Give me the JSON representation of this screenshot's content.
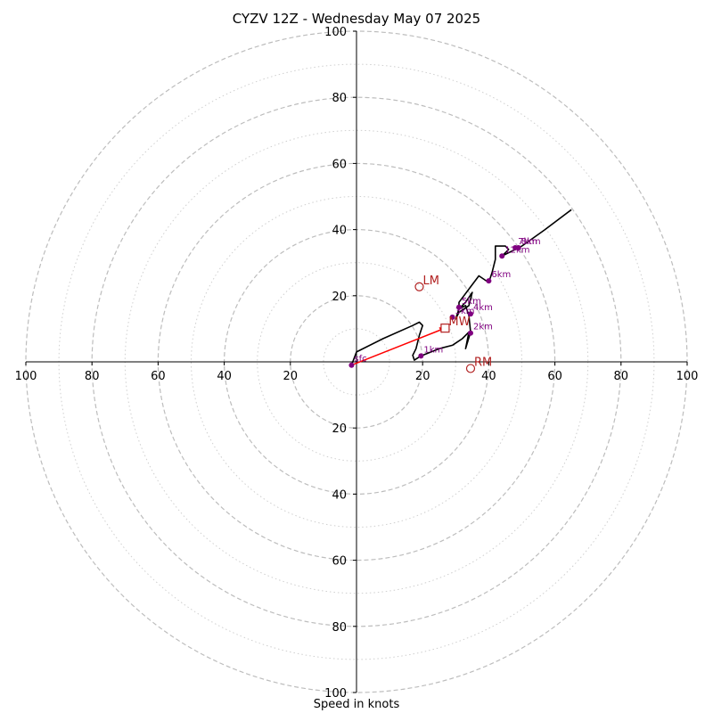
{
  "chart_data": {
    "type": "hodograph",
    "title": "CYZV 12Z - Wednesday May 07 2025",
    "xlabel": "Speed in knots",
    "ylabel": "",
    "range": [
      -100,
      100
    ],
    "ring_ticks": [
      20,
      40,
      60,
      80,
      100
    ],
    "minor_rings": [
      10,
      30,
      50,
      70,
      90
    ],
    "x_tick_labels": [
      "100",
      "80",
      "60",
      "40",
      "20",
      "20",
      "40",
      "60",
      "80",
      "100"
    ],
    "y_tick_labels": [
      "100",
      "80",
      "60",
      "40",
      "20",
      "20",
      "40",
      "60",
      "80",
      "100"
    ],
    "grid": true,
    "colors": {
      "trace": "#000000",
      "height_points": "#800080",
      "motion_markers": "#b22222",
      "arrow": "#ff0000",
      "ring": "#bdbdbd"
    },
    "trace": [
      [
        -1.5,
        -1
      ],
      [
        0,
        3
      ],
      [
        8,
        7
      ],
      [
        17,
        11
      ],
      [
        19,
        12
      ],
      [
        20,
        11
      ],
      [
        19,
        8
      ],
      [
        18,
        4
      ],
      [
        17,
        2
      ],
      [
        17.5,
        0.5
      ],
      [
        19,
        1.5
      ],
      [
        20,
        2
      ],
      [
        25,
        4
      ],
      [
        29,
        5
      ],
      [
        32,
        7
      ],
      [
        34,
        9
      ],
      [
        33,
        4
      ],
      [
        34.5,
        9
      ],
      [
        34,
        14
      ],
      [
        33,
        17
      ],
      [
        31,
        16
      ],
      [
        33,
        18
      ],
      [
        35,
        21
      ],
      [
        34,
        17
      ],
      [
        31,
        15
      ],
      [
        30,
        13
      ],
      [
        31,
        16
      ],
      [
        31,
        18
      ],
      [
        34,
        22
      ],
      [
        37,
        26
      ],
      [
        40,
        24
      ],
      [
        41,
        27
      ],
      [
        42,
        31
      ],
      [
        42,
        35
      ],
      [
        45,
        35
      ],
      [
        46,
        34
      ],
      [
        44,
        32
      ],
      [
        48,
        34
      ],
      [
        50,
        35
      ],
      [
        57,
        40
      ],
      [
        65,
        46
      ]
    ],
    "height_points": [
      {
        "label": "sfc",
        "u": -1.5,
        "v": -1
      },
      {
        "label": "1km",
        "u": 19.5,
        "v": 1.8
      },
      {
        "label": "2km",
        "u": 34.5,
        "v": 8.7
      },
      {
        "label": "3km",
        "u": 29,
        "v": 13.5
      },
      {
        "label": "4km",
        "u": 34.5,
        "v": 14.5
      },
      {
        "label": "5km",
        "u": 31,
        "v": 16.5
      },
      {
        "label": "6km",
        "u": 40,
        "v": 24.5
      },
      {
        "label": "7km",
        "u": 48,
        "v": 34.5
      },
      {
        "label": "8km",
        "u": 49,
        "v": 34.5
      },
      {
        "label": "12km",
        "u": 44,
        "v": 32
      }
    ],
    "storm_motion": [
      {
        "label": "LM",
        "u": 19,
        "v": 22.7,
        "marker": "circle"
      },
      {
        "label": "RM",
        "u": 34.5,
        "v": -2,
        "marker": "circle"
      },
      {
        "label": "MW",
        "u": 26.8,
        "v": 10.2,
        "marker": "square"
      }
    ],
    "arrow": {
      "from": [
        -1.5,
        -1
      ],
      "to": [
        26.8,
        10.2
      ]
    }
  }
}
